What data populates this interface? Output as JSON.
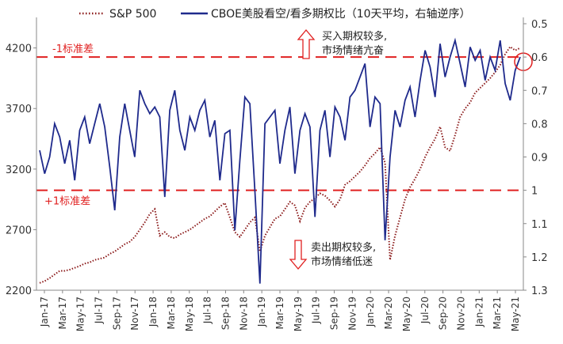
{
  "chart_data": {
    "type": "line",
    "title": "",
    "legend": {
      "position": "top",
      "entries": [
        {
          "name": "S&P 500",
          "style": "dotted",
          "color": "#8b1a1a"
        },
        {
          "name": "CBOE美股看空/看多期权比（10天平均，右轴逆序）",
          "style": "solid",
          "color": "#1f2a8c"
        }
      ]
    },
    "x_labels": [
      "Jan-17",
      "Mar-17",
      "May-17",
      "Jul-17",
      "Sep-17",
      "Nov-17",
      "Jan-18",
      "Mar-18",
      "May-18",
      "Jul-18",
      "Sep-18",
      "Nov-18",
      "Jan-19",
      "Mar-19",
      "May-19",
      "Jul-19",
      "Sep-19",
      "Nov-19",
      "Jan-20",
      "Mar-20",
      "May-20",
      "Jul-20",
      "Sep-20",
      "Nov-20",
      "Jan-21",
      "Mar-21",
      "May-21"
    ],
    "y_left": {
      "min": 2200,
      "max": 4400,
      "ticks": [
        2200,
        2700,
        3200,
        3700,
        4200
      ]
    },
    "y_right": {
      "min": 0.5,
      "max": 1.3,
      "inverted": true,
      "ticks": [
        "0.5",
        "0.6",
        "0.7",
        "0.8",
        "0.9",
        "1",
        "1.1",
        "1.2",
        "1.3"
      ]
    },
    "series": [
      {
        "name": "S&P 500",
        "axis": "left",
        "values": [
          2260,
          2275,
          2300,
          2330,
          2360,
          2360,
          2370,
          2385,
          2400,
          2420,
          2430,
          2450,
          2460,
          2470,
          2500,
          2520,
          2550,
          2580,
          2600,
          2640,
          2700,
          2760,
          2830,
          2870,
          2650,
          2680,
          2640,
          2630,
          2660,
          2680,
          2700,
          2730,
          2760,
          2790,
          2810,
          2850,
          2890,
          2920,
          2800,
          2680,
          2640,
          2700,
          2760,
          2800,
          2520,
          2650,
          2720,
          2790,
          2810,
          2870,
          2930,
          2900,
          2770,
          2880,
          2930,
          2960,
          3000,
          2980,
          2940,
          2890,
          2950,
          3070,
          3100,
          3140,
          3180,
          3230,
          3290,
          3330,
          3380,
          3250,
          2450,
          2650,
          2800,
          2950,
          3050,
          3120,
          3200,
          3300,
          3380,
          3450,
          3550,
          3380,
          3350,
          3480,
          3630,
          3700,
          3750,
          3830,
          3870,
          3910,
          3950,
          4000,
          4060,
          4150,
          4210,
          4180,
          4200
        ]
      },
      {
        "name": "CBOE美股看空/看多期权比（10天平均，右轴逆序）",
        "axis": "right",
        "values": [
          0.88,
          0.95,
          0.9,
          0.8,
          0.84,
          0.92,
          0.85,
          0.97,
          0.82,
          0.78,
          0.86,
          0.8,
          0.74,
          0.81,
          0.93,
          1.06,
          0.84,
          0.74,
          0.82,
          0.9,
          0.7,
          0.74,
          0.77,
          0.75,
          0.78,
          1.02,
          0.76,
          0.7,
          0.82,
          0.88,
          0.78,
          0.82,
          0.76,
          0.73,
          0.84,
          0.79,
          0.97,
          0.83,
          0.82,
          1.12,
          0.91,
          0.72,
          0.74,
          1.0,
          1.28,
          0.8,
          0.78,
          0.76,
          0.92,
          0.82,
          0.75,
          0.95,
          0.82,
          0.77,
          0.81,
          1.08,
          0.82,
          0.76,
          0.9,
          0.75,
          0.78,
          0.85,
          0.72,
          0.7,
          0.66,
          0.62,
          0.81,
          0.72,
          0.74,
          1.15,
          0.9,
          0.76,
          0.81,
          0.73,
          0.69,
          0.78,
          0.67,
          0.58,
          0.63,
          0.72,
          0.56,
          0.66,
          0.6,
          0.55,
          0.62,
          0.69,
          0.57,
          0.61,
          0.58,
          0.67,
          0.6,
          0.64,
          0.55,
          0.68,
          0.73,
          0.64,
          0.6
        ]
      }
    ],
    "reference_lines": [
      {
        "label": "-1标准差",
        "axis": "right",
        "value": 0.6
      },
      {
        "label": "+1标准差",
        "axis": "right",
        "value": 1.0
      }
    ],
    "annotations": [
      {
        "text_line1": "买入期权较多,",
        "text_line2": "市场情绪亢奋",
        "arrow": "up"
      },
      {
        "text_line1": "卖出期权较多,",
        "text_line2": "市场情绪低迷",
        "arrow": "down"
      }
    ],
    "highlight": {
      "description": "circle at latest data point on right axis",
      "value": 0.6
    }
  }
}
